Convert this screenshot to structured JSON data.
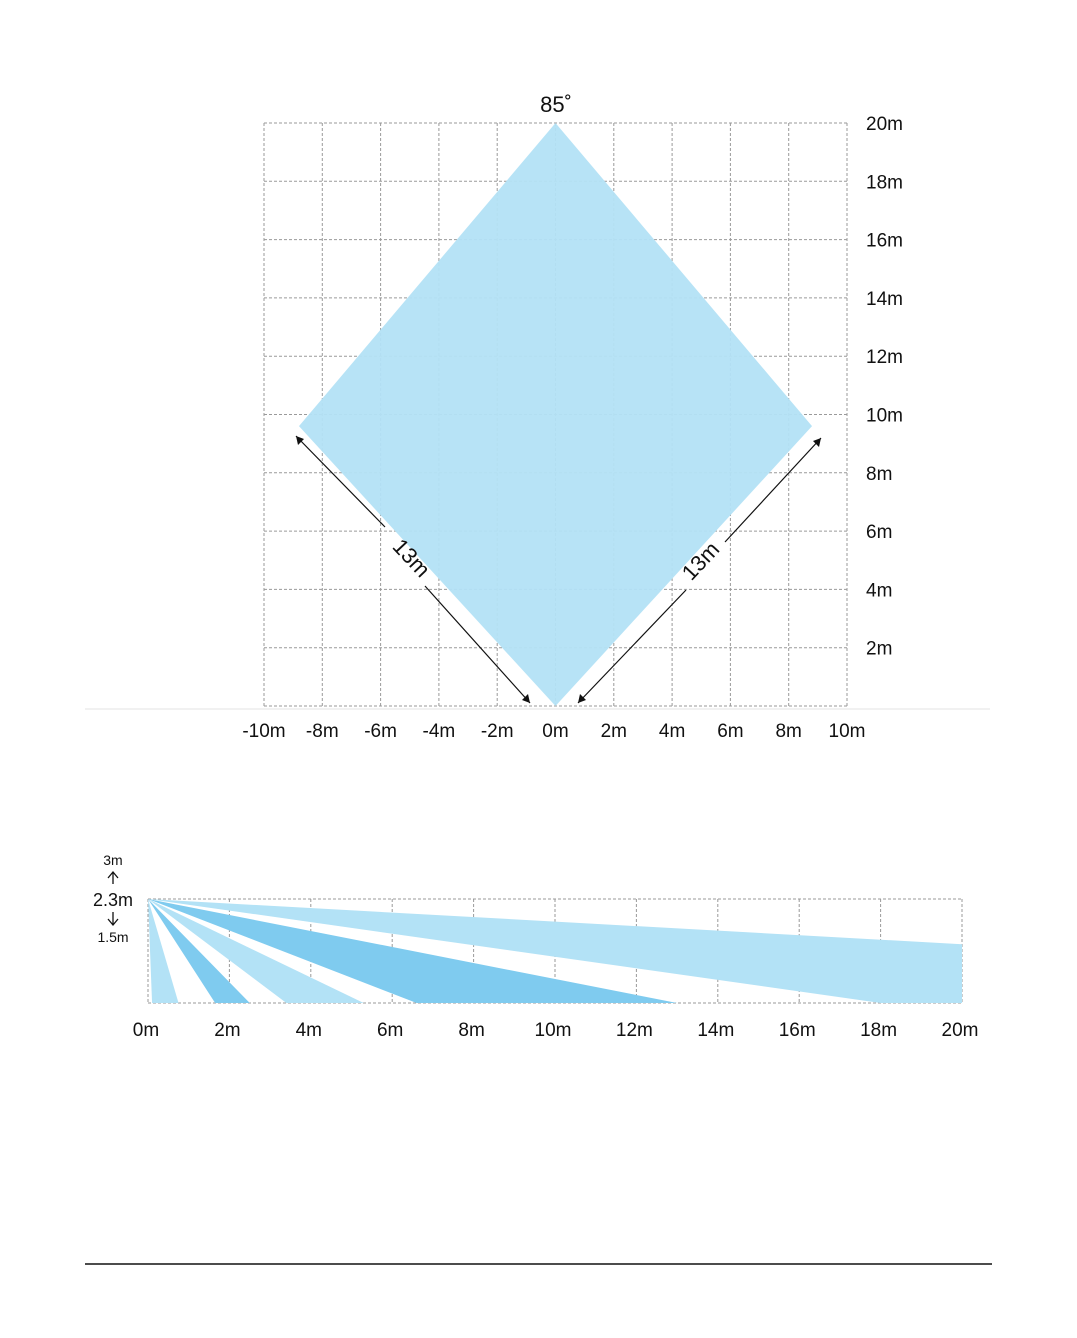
{
  "colors": {
    "zone_light": "#b3e2f6",
    "zone_dark": "#7fcbef",
    "grid": "#9a9a9a",
    "text": "#111111",
    "arrow": "#111111",
    "rule": "#111111"
  },
  "top_view": {
    "angle_label": "85˚",
    "x_ticks": [
      -10,
      -8,
      -6,
      -4,
      -2,
      0,
      2,
      4,
      6,
      8,
      10
    ],
    "x_tick_labels": [
      "-10m",
      "-8m",
      "-6m",
      "-4m",
      "-2m",
      "0m",
      "2m",
      "4m",
      "6m",
      "8m",
      "10m"
    ],
    "y_ticks": [
      2,
      4,
      6,
      8,
      10,
      12,
      14,
      16,
      18,
      20
    ],
    "y_tick_labels": [
      "2m",
      "4m",
      "6m",
      "8m",
      "10m",
      "12m",
      "14m",
      "16m",
      "18m",
      "20m"
    ],
    "x_range": [
      -10,
      10
    ],
    "y_range": [
      0,
      20
    ],
    "zone_vertices": [
      [
        0,
        0
      ],
      [
        -8.8,
        9.6
      ],
      [
        0,
        20
      ],
      [
        8.8,
        9.6
      ]
    ],
    "left_dimension_label": "13m",
    "right_dimension_label": "13m"
  },
  "side_view": {
    "mount_height_label": "2.3m",
    "max_height_label": "3m",
    "min_height_label": "1.5m",
    "x_ticks": [
      0,
      2,
      4,
      6,
      8,
      10,
      12,
      14,
      16,
      18,
      20
    ],
    "x_tick_labels": [
      "0m",
      "2m",
      "4m",
      "6m",
      "8m",
      "10m",
      "12m",
      "14m",
      "16m",
      "18m",
      "20m"
    ],
    "x_range": [
      0,
      20
    ],
    "mount_height": 2.3,
    "beams": [
      {
        "shade": "light",
        "floor_start": 0.1,
        "floor_end": 0.75
      },
      {
        "shade": "dark",
        "floor_start": 1.65,
        "floor_end": 2.5
      },
      {
        "shade": "light",
        "floor_start": 3.4,
        "floor_end": 5.3
      },
      {
        "shade": "dark",
        "floor_start": 6.6,
        "floor_end": 13.0
      },
      {
        "shade": "light",
        "floor_start": 18.0,
        "floor_end": 20.0,
        "far_height": 1.3
      }
    ]
  }
}
